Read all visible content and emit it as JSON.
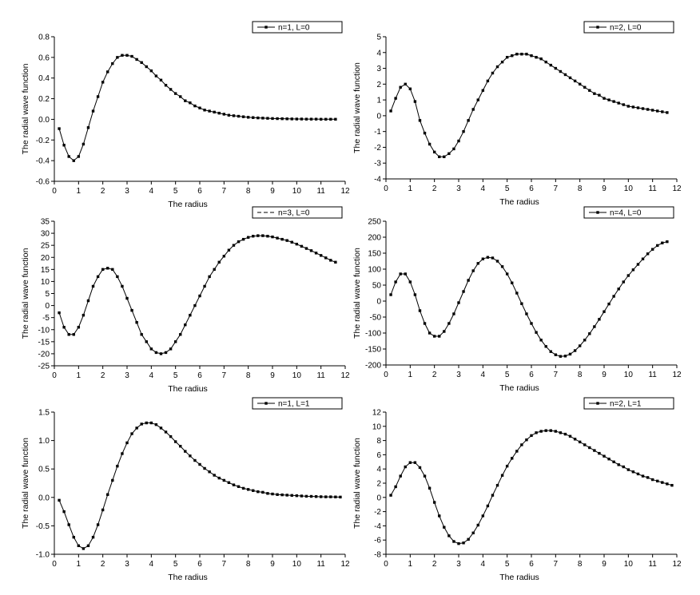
{
  "chart_data": [
    {
      "type": "line",
      "xlabel": "The radius",
      "ylabel": "The radial wave function",
      "xlim": [
        0,
        12
      ],
      "ylim": [
        -0.6,
        0.8
      ],
      "xticks": [
        "0",
        "1",
        "2",
        "3",
        "4",
        "5",
        "6",
        "7",
        "8",
        "9",
        "10",
        "11",
        "12"
      ],
      "yticks": [
        "-0.6",
        "-0.4",
        "-0.2",
        "0.0",
        "0.2",
        "0.4",
        "0.6",
        "0.8"
      ],
      "series": [
        {
          "name": "n=1, L=0",
          "marker": "square",
          "x": [
            0.2,
            0.4,
            0.6,
            0.8,
            1.0,
            1.2,
            1.4,
            1.6,
            1.8,
            2.0,
            2.2,
            2.4,
            2.6,
            2.8,
            3.0,
            3.2,
            3.4,
            3.6,
            3.8,
            4.0,
            4.2,
            4.4,
            4.6,
            4.8,
            5.0,
            5.2,
            5.4,
            5.6,
            5.8,
            6.0,
            6.2,
            6.4,
            6.6,
            6.8,
            7.0,
            7.2,
            7.4,
            7.6,
            7.8,
            8.0,
            8.2,
            8.4,
            8.6,
            8.8,
            9.0,
            9.2,
            9.4,
            9.6,
            9.8,
            10.0,
            10.2,
            10.4,
            10.6,
            10.8,
            11.0,
            11.2,
            11.4,
            11.6
          ],
          "y": [
            -0.09,
            -0.25,
            -0.36,
            -0.4,
            -0.36,
            -0.24,
            -0.08,
            0.08,
            0.22,
            0.36,
            0.46,
            0.54,
            0.6,
            0.62,
            0.62,
            0.61,
            0.58,
            0.55,
            0.51,
            0.47,
            0.42,
            0.38,
            0.33,
            0.29,
            0.25,
            0.22,
            0.18,
            0.16,
            0.13,
            0.11,
            0.09,
            0.08,
            0.07,
            0.06,
            0.05,
            0.04,
            0.035,
            0.03,
            0.025,
            0.02,
            0.017,
            0.014,
            0.012,
            0.01,
            0.008,
            0.007,
            0.006,
            0.005,
            0.004,
            0.003,
            0.003,
            0.002,
            0.002,
            0.002,
            0.001,
            0.001,
            0.001,
            0.001
          ]
        }
      ]
    },
    {
      "type": "line",
      "xlabel": "The radius",
      "ylabel": "The radial wave function",
      "xlim": [
        0,
        12
      ],
      "ylim": [
        -4,
        5
      ],
      "xticks": [
        "0",
        "1",
        "2",
        "3",
        "4",
        "5",
        "6",
        "7",
        "8",
        "9",
        "10",
        "11",
        "12"
      ],
      "yticks": [
        "-4",
        "-3",
        "-2",
        "-1",
        "0",
        "1",
        "2",
        "3",
        "4",
        "5"
      ],
      "series": [
        {
          "name": "n=2, L=0",
          "marker": "square",
          "x": [
            0.2,
            0.4,
            0.6,
            0.8,
            1.0,
            1.2,
            1.4,
            1.6,
            1.8,
            2.0,
            2.2,
            2.4,
            2.6,
            2.8,
            3.0,
            3.2,
            3.4,
            3.6,
            3.8,
            4.0,
            4.2,
            4.4,
            4.6,
            4.8,
            5.0,
            5.2,
            5.4,
            5.6,
            5.8,
            6.0,
            6.2,
            6.4,
            6.6,
            6.8,
            7.0,
            7.2,
            7.4,
            7.6,
            7.8,
            8.0,
            8.2,
            8.4,
            8.6,
            8.8,
            9.0,
            9.2,
            9.4,
            9.6,
            9.8,
            10.0,
            10.2,
            10.4,
            10.6,
            10.8,
            11.0,
            11.2,
            11.4,
            11.6
          ],
          "y": [
            0.3,
            1.1,
            1.8,
            2.0,
            1.7,
            0.9,
            -0.3,
            -1.1,
            -1.8,
            -2.3,
            -2.6,
            -2.6,
            -2.4,
            -2.1,
            -1.6,
            -1.0,
            -0.3,
            0.4,
            1.0,
            1.6,
            2.2,
            2.7,
            3.1,
            3.4,
            3.7,
            3.8,
            3.9,
            3.9,
            3.9,
            3.8,
            3.7,
            3.6,
            3.4,
            3.2,
            3.0,
            2.8,
            2.6,
            2.4,
            2.2,
            2.0,
            1.8,
            1.6,
            1.4,
            1.3,
            1.1,
            1.0,
            0.9,
            0.8,
            0.7,
            0.6,
            0.55,
            0.5,
            0.45,
            0.4,
            0.35,
            0.3,
            0.25,
            0.2
          ]
        }
      ]
    },
    {
      "type": "line",
      "xlabel": "The radius",
      "ylabel": "The radial wave function",
      "xlim": [
        0,
        12
      ],
      "ylim": [
        -25,
        35
      ],
      "xticks": [
        "0",
        "1",
        "2",
        "3",
        "4",
        "5",
        "6",
        "7",
        "8",
        "9",
        "10",
        "11",
        "12"
      ],
      "yticks": [
        "-25",
        "-20",
        "-15",
        "-10",
        "-5",
        "0",
        "5",
        "10",
        "15",
        "20",
        "25",
        "30",
        "35"
      ],
      "series": [
        {
          "name": "n=3, L=0",
          "marker": "square",
          "x": [
            0.2,
            0.4,
            0.6,
            0.8,
            1.0,
            1.2,
            1.4,
            1.6,
            1.8,
            2.0,
            2.2,
            2.4,
            2.6,
            2.8,
            3.0,
            3.2,
            3.4,
            3.6,
            3.8,
            4.0,
            4.2,
            4.4,
            4.6,
            4.8,
            5.0,
            5.2,
            5.4,
            5.6,
            5.8,
            6.0,
            6.2,
            6.4,
            6.6,
            6.8,
            7.0,
            7.2,
            7.4,
            7.6,
            7.8,
            8.0,
            8.2,
            8.4,
            8.6,
            8.8,
            9.0,
            9.2,
            9.4,
            9.6,
            9.8,
            10.0,
            10.2,
            10.4,
            10.6,
            10.8,
            11.0,
            11.2,
            11.4,
            11.6
          ],
          "y": [
            -3,
            -9,
            -12,
            -12,
            -9,
            -4,
            2,
            8,
            12,
            15,
            15.5,
            15,
            12,
            8,
            3,
            -2,
            -7,
            -12,
            -15,
            -18,
            -19.5,
            -20,
            -19.5,
            -18,
            -15,
            -12,
            -8,
            -4,
            0,
            4,
            8,
            12,
            15,
            18,
            20.5,
            23,
            25,
            26.5,
            27.5,
            28.3,
            28.8,
            29,
            29,
            28.8,
            28.5,
            28,
            27.5,
            27,
            26.3,
            25.5,
            24.6,
            23.7,
            22.8,
            21.8,
            20.8,
            19.8,
            18.8,
            18
          ]
        }
      ]
    },
    {
      "type": "line",
      "xlabel": "The radius",
      "ylabel": "The radial wave function",
      "xlim": [
        0,
        12
      ],
      "ylim": [
        -200,
        250
      ],
      "xticks": [
        "0",
        "1",
        "2",
        "3",
        "4",
        "5",
        "6",
        "7",
        "8",
        "9",
        "10",
        "11",
        "12"
      ],
      "yticks": [
        "-200",
        "-150",
        "-100",
        "-50",
        "0",
        "50",
        "100",
        "150",
        "200",
        "250"
      ],
      "series": [
        {
          "name": "n=4, L=0",
          "marker": "square",
          "x": [
            0.2,
            0.4,
            0.6,
            0.8,
            1.0,
            1.2,
            1.4,
            1.6,
            1.8,
            2.0,
            2.2,
            2.4,
            2.6,
            2.8,
            3.0,
            3.2,
            3.4,
            3.6,
            3.8,
            4.0,
            4.2,
            4.4,
            4.6,
            4.8,
            5.0,
            5.2,
            5.4,
            5.6,
            5.8,
            6.0,
            6.2,
            6.4,
            6.6,
            6.8,
            7.0,
            7.2,
            7.4,
            7.6,
            7.8,
            8.0,
            8.2,
            8.4,
            8.6,
            8.8,
            9.0,
            9.2,
            9.4,
            9.6,
            9.8,
            10.0,
            10.2,
            10.4,
            10.6,
            10.8,
            11.0,
            11.2,
            11.4,
            11.6
          ],
          "y": [
            20,
            60,
            85,
            85,
            60,
            20,
            -30,
            -70,
            -100,
            -110,
            -110,
            -95,
            -70,
            -40,
            -5,
            30,
            65,
            95,
            118,
            132,
            137,
            135,
            125,
            108,
            85,
            57,
            25,
            -8,
            -40,
            -70,
            -98,
            -122,
            -142,
            -158,
            -168,
            -173,
            -172,
            -166,
            -155,
            -140,
            -122,
            -102,
            -80,
            -57,
            -33,
            -9,
            15,
            38,
            60,
            80,
            98,
            115,
            132,
            148,
            162,
            174,
            182,
            186
          ]
        }
      ]
    },
    {
      "type": "line",
      "xlabel": "The radius",
      "ylabel": "The radial wave function",
      "xlim": [
        0,
        12
      ],
      "ylim": [
        -1.0,
        1.5
      ],
      "xticks": [
        "0",
        "1",
        "2",
        "3",
        "4",
        "5",
        "6",
        "7",
        "8",
        "9",
        "10",
        "11",
        "12"
      ],
      "yticks": [
        "-1.0",
        "-0.5",
        "0.0",
        "0.5",
        "1.0",
        "1.5"
      ],
      "series": [
        {
          "name": "n=1, L=1",
          "marker": "square",
          "x": [
            0.2,
            0.4,
            0.6,
            0.8,
            1.0,
            1.2,
            1.4,
            1.6,
            1.8,
            2.0,
            2.2,
            2.4,
            2.6,
            2.8,
            3.0,
            3.2,
            3.4,
            3.6,
            3.8,
            4.0,
            4.2,
            4.4,
            4.6,
            4.8,
            5.0,
            5.2,
            5.4,
            5.6,
            5.8,
            6.0,
            6.2,
            6.4,
            6.6,
            6.8,
            7.0,
            7.2,
            7.4,
            7.6,
            7.8,
            8.0,
            8.2,
            8.4,
            8.6,
            8.8,
            9.0,
            9.2,
            9.4,
            9.6,
            9.8,
            10.0,
            10.2,
            10.4,
            10.6,
            10.8,
            11.0,
            11.2,
            11.4,
            11.6,
            11.8
          ],
          "y": [
            -0.05,
            -0.25,
            -0.48,
            -0.7,
            -0.85,
            -0.9,
            -0.85,
            -0.7,
            -0.48,
            -0.22,
            0.05,
            0.3,
            0.55,
            0.77,
            0.96,
            1.12,
            1.22,
            1.29,
            1.31,
            1.31,
            1.28,
            1.22,
            1.15,
            1.07,
            0.98,
            0.9,
            0.81,
            0.73,
            0.65,
            0.58,
            0.51,
            0.45,
            0.39,
            0.34,
            0.3,
            0.26,
            0.22,
            0.19,
            0.16,
            0.14,
            0.12,
            0.1,
            0.09,
            0.07,
            0.06,
            0.05,
            0.045,
            0.04,
            0.035,
            0.03,
            0.025,
            0.02,
            0.018,
            0.015,
            0.012,
            0.01,
            0.01,
            0.008,
            0.006
          ]
        }
      ]
    },
    {
      "type": "line",
      "xlabel": "The radius",
      "ylabel": "The radial wave function",
      "xlim": [
        0,
        12
      ],
      "ylim": [
        -8,
        12
      ],
      "xticks": [
        "0",
        "1",
        "2",
        "3",
        "4",
        "5",
        "6",
        "7",
        "8",
        "9",
        "10",
        "11",
        "12"
      ],
      "yticks": [
        "-8",
        "-6",
        "-4",
        "-2",
        "0",
        "2",
        "4",
        "6",
        "8",
        "10",
        "12"
      ],
      "series": [
        {
          "name": "n=2, L=1",
          "marker": "square",
          "x": [
            0.2,
            0.4,
            0.6,
            0.8,
            1.0,
            1.2,
            1.4,
            1.6,
            1.8,
            2.0,
            2.2,
            2.4,
            2.6,
            2.8,
            3.0,
            3.2,
            3.4,
            3.6,
            3.8,
            4.0,
            4.2,
            4.4,
            4.6,
            4.8,
            5.0,
            5.2,
            5.4,
            5.6,
            5.8,
            6.0,
            6.2,
            6.4,
            6.6,
            6.8,
            7.0,
            7.2,
            7.4,
            7.6,
            7.8,
            8.0,
            8.2,
            8.4,
            8.6,
            8.8,
            9.0,
            9.2,
            9.4,
            9.6,
            9.8,
            10.0,
            10.2,
            10.4,
            10.6,
            10.8,
            11.0,
            11.2,
            11.4,
            11.6,
            11.8
          ],
          "y": [
            0.3,
            1.5,
            3.0,
            4.3,
            4.9,
            4.9,
            4.2,
            3.0,
            1.3,
            -0.7,
            -2.6,
            -4.2,
            -5.4,
            -6.2,
            -6.5,
            -6.4,
            -5.9,
            -5.0,
            -3.9,
            -2.6,
            -1.2,
            0.3,
            1.7,
            3.1,
            4.4,
            5.5,
            6.5,
            7.4,
            8.1,
            8.7,
            9.1,
            9.3,
            9.4,
            9.4,
            9.3,
            9.1,
            8.9,
            8.6,
            8.2,
            7.8,
            7.4,
            7.0,
            6.6,
            6.2,
            5.8,
            5.4,
            5.0,
            4.6,
            4.3,
            3.9,
            3.6,
            3.3,
            3.0,
            2.8,
            2.5,
            2.3,
            2.1,
            1.9,
            1.7
          ]
        }
      ]
    }
  ]
}
